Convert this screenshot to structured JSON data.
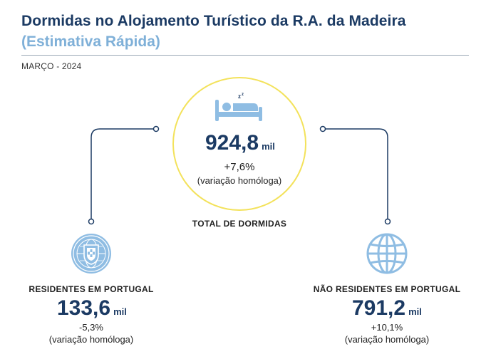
{
  "header": {
    "title": "Dormidas no Alojamento Turístico da R.A. da Madeira",
    "subtitle": "(Estimativa Rápida)",
    "period": "MARÇO - 2024"
  },
  "colors": {
    "title": "#1b3a63",
    "subtitle": "#7fb0d8",
    "icon_fill": "#8fbde3",
    "ring": "#f3e25b",
    "connector": "#1b3a63"
  },
  "total": {
    "value": "924,8",
    "unit": "mil",
    "change": "+7,6%",
    "note": "(variação homóloga)",
    "label": "TOTAL DE DORMIDAS",
    "icon": "bed-icon"
  },
  "residents": {
    "label": "RESIDENTES EM PORTUGAL",
    "value": "133,6",
    "unit": "mil",
    "change": "-5,3%",
    "note": "(variação homóloga)",
    "icon": "portugal-coat-of-arms-icon"
  },
  "non_residents": {
    "label": "NÃO RESIDENTES EM PORTUGAL",
    "value": "791,2",
    "unit": "mil",
    "change": "+10,1%",
    "note": "(variação homóloga)",
    "icon": "globe-icon"
  }
}
